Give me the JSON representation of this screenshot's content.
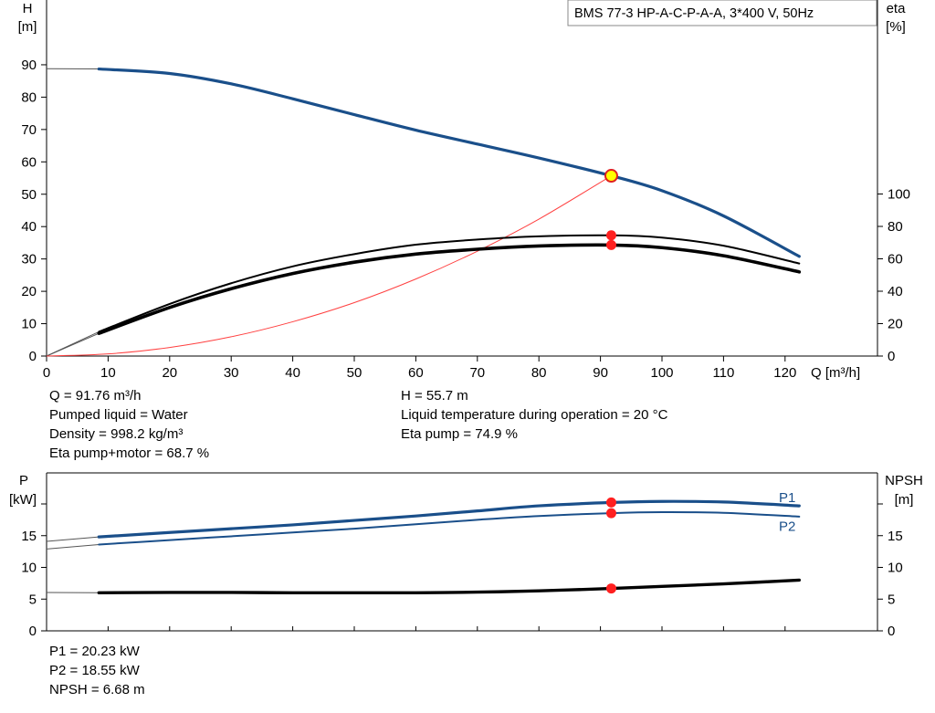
{
  "pump_model": "BMS 77-3 HP-A-C-P-A-A, 3*400 V, 50Hz",
  "colors": {
    "blue": "#1a4f8a",
    "black": "#000000",
    "system_curve": "#ff4040",
    "operating_point": "#ff2020",
    "duty_point_fill": "#ffff00",
    "frame": "#000000"
  },
  "chart_data": [
    {
      "id": "head_eta",
      "type": "line",
      "xlabel": "Q [m³/h]",
      "ylabel_left": [
        "H",
        "[m]"
      ],
      "ylabel_right": [
        "eta",
        "[%]"
      ],
      "xlim": [
        0,
        135
      ],
      "ylim_left": [
        0,
        100
      ],
      "ylim_right": [
        0,
        211
      ],
      "x_ticks": [
        0,
        10,
        20,
        30,
        40,
        50,
        60,
        70,
        80,
        90,
        100,
        110,
        120
      ],
      "x_tick_labels": [
        "0",
        "10",
        "20",
        "30",
        "40",
        "50",
        "60",
        "70",
        "80",
        "90",
        "100",
        "110",
        "120"
      ],
      "y_left_ticks": [
        0,
        10,
        20,
        30,
        40,
        50,
        60,
        70,
        80,
        90
      ],
      "y_left_tick_labels": [
        "0",
        "10",
        "20",
        "30",
        "40",
        "50",
        "60",
        "70",
        "80",
        "90"
      ],
      "y_right_ticks": [
        0,
        20,
        40,
        60,
        80,
        100
      ],
      "y_right_tick_labels": [
        "0",
        "20",
        "40",
        "60",
        "80",
        "100"
      ],
      "grid": false,
      "series": [
        {
          "axis": "left",
          "color": "#1a4f8a",
          "width": 3.2,
          "x": [
            8.5,
            20,
            30,
            40,
            50,
            60,
            70,
            80,
            91.76,
            100,
            110,
            122.3
          ],
          "y": [
            88.7,
            87.3,
            84.1,
            79.5,
            74.6,
            69.8,
            65.5,
            61.2,
            55.7,
            51.1,
            43.3,
            30.8
          ]
        },
        {
          "axis": "left",
          "color": "#000000",
          "width": 2,
          "x": [
            8.5,
            20,
            30,
            40,
            50,
            60,
            70,
            80,
            91.76,
            100,
            110,
            122.3
          ],
          "y": [
            7.5,
            16.1,
            22.5,
            27.7,
            31.5,
            34.4,
            36.0,
            37.0,
            37.3,
            36.6,
            34.1,
            28.6
          ]
        },
        {
          "axis": "left",
          "color": "#000000",
          "width": 3.6,
          "x": [
            8.5,
            20,
            30,
            40,
            50,
            60,
            70,
            80,
            91.76,
            100,
            110,
            122.3
          ],
          "y": [
            7.0,
            15.0,
            20.8,
            25.5,
            29.0,
            31.5,
            33.0,
            34.0,
            34.3,
            33.5,
            31.0,
            26.0
          ]
        }
      ],
      "extrapolation_lines": [
        {
          "color": "#555555",
          "x": [
            0,
            8.5
          ],
          "y": [
            88.8,
            88.7
          ]
        },
        {
          "color": "#555555",
          "x": [
            0,
            8.5
          ],
          "y": [
            0,
            7.5
          ]
        },
        {
          "color": "#555555",
          "x": [
            0,
            8.5
          ],
          "y": [
            0,
            7.0
          ]
        }
      ],
      "system_curve": {
        "color": "#ff4040",
        "x": [
          0,
          10,
          20,
          30,
          40,
          50,
          60,
          70,
          80,
          91.76
        ],
        "y": [
          0,
          0.66,
          2.65,
          5.95,
          10.6,
          16.5,
          23.8,
          32.4,
          42.3,
          55.7
        ]
      },
      "operating_points": [
        {
          "x": 91.76,
          "y": 37.3,
          "style": "red"
        },
        {
          "x": 91.76,
          "y": 34.3,
          "style": "red"
        },
        {
          "x": 91.76,
          "y": 55.7,
          "style": "duty"
        }
      ]
    },
    {
      "id": "power_npsh",
      "type": "line",
      "ylabel_left": [
        "P",
        "[kW]"
      ],
      "ylabel_right": [
        "NPSH",
        "[m]"
      ],
      "xlim": [
        0,
        135
      ],
      "ylim": [
        0,
        23
      ],
      "y_left_ticks": [
        0,
        5,
        10,
        15,
        20
      ],
      "y_left_tick_labels": [
        "0",
        "5",
        "10",
        "15",
        ""
      ],
      "y_right_ticks": [
        0,
        5,
        10,
        15,
        20
      ],
      "y_right_tick_labels": [
        "0",
        "5",
        "10",
        "15",
        ""
      ],
      "x_ticks": [
        0,
        10,
        20,
        30,
        40,
        50,
        60,
        70,
        80,
        90,
        100,
        110,
        120
      ],
      "grid": false,
      "series": [
        {
          "name": "P1",
          "color": "#1a4f8a",
          "width": 3.2,
          "x": [
            8.5,
            20,
            30,
            40,
            50,
            60,
            70,
            80,
            91.76,
            100,
            110,
            122.3
          ],
          "y": [
            14.8,
            15.5,
            16.1,
            16.7,
            17.4,
            18.1,
            18.9,
            19.7,
            20.23,
            20.4,
            20.3,
            19.7
          ]
        },
        {
          "name": "P2",
          "color": "#1a4f8a",
          "width": 2,
          "x": [
            8.5,
            20,
            30,
            40,
            50,
            60,
            70,
            80,
            91.76,
            100,
            110,
            122.3
          ],
          "y": [
            13.6,
            14.3,
            14.9,
            15.5,
            16.1,
            16.8,
            17.5,
            18.1,
            18.55,
            18.7,
            18.6,
            18.0
          ]
        },
        {
          "color": "#000000",
          "width": 3.4,
          "x": [
            8.5,
            20,
            30,
            40,
            50,
            60,
            70,
            80,
            91.76,
            100,
            110,
            122.3
          ],
          "y": [
            6.0,
            6.05,
            6.05,
            6.0,
            6.0,
            6.0,
            6.1,
            6.3,
            6.68,
            7.0,
            7.4,
            8.0
          ]
        }
      ],
      "extrapolation_lines": [
        {
          "color": "#555555",
          "x": [
            0,
            8.5
          ],
          "y": [
            14.1,
            14.8
          ]
        },
        {
          "color": "#555555",
          "x": [
            0,
            8.5
          ],
          "y": [
            12.9,
            13.6
          ]
        },
        {
          "color": "#555555",
          "x": [
            0,
            8.5
          ],
          "y": [
            6.05,
            6.0
          ]
        }
      ],
      "operating_points": [
        {
          "x": 91.76,
          "y": 20.23,
          "style": "red"
        },
        {
          "x": 91.76,
          "y": 18.55,
          "style": "red"
        },
        {
          "x": 91.76,
          "y": 6.68,
          "style": "red"
        }
      ],
      "series_labels": [
        {
          "text": "P1",
          "x": 119,
          "y": 21.0
        },
        {
          "text": "P2",
          "x": 119,
          "y": 16.5
        }
      ]
    }
  ],
  "info_upper": {
    "left": [
      "Q = 91.76 m³/h",
      "Pumped liquid = Water",
      "Density = 998.2 kg/m³",
      "Eta pump+motor = 68.7 %"
    ],
    "right": [
      "H = 55.7 m",
      "Liquid temperature during operation = 20 °C",
      "Eta pump = 74.9 %"
    ]
  },
  "info_lower": {
    "left": [
      "P1 = 20.23 kW",
      "P2 = 18.55 kW",
      "NPSH = 6.68 m"
    ]
  }
}
